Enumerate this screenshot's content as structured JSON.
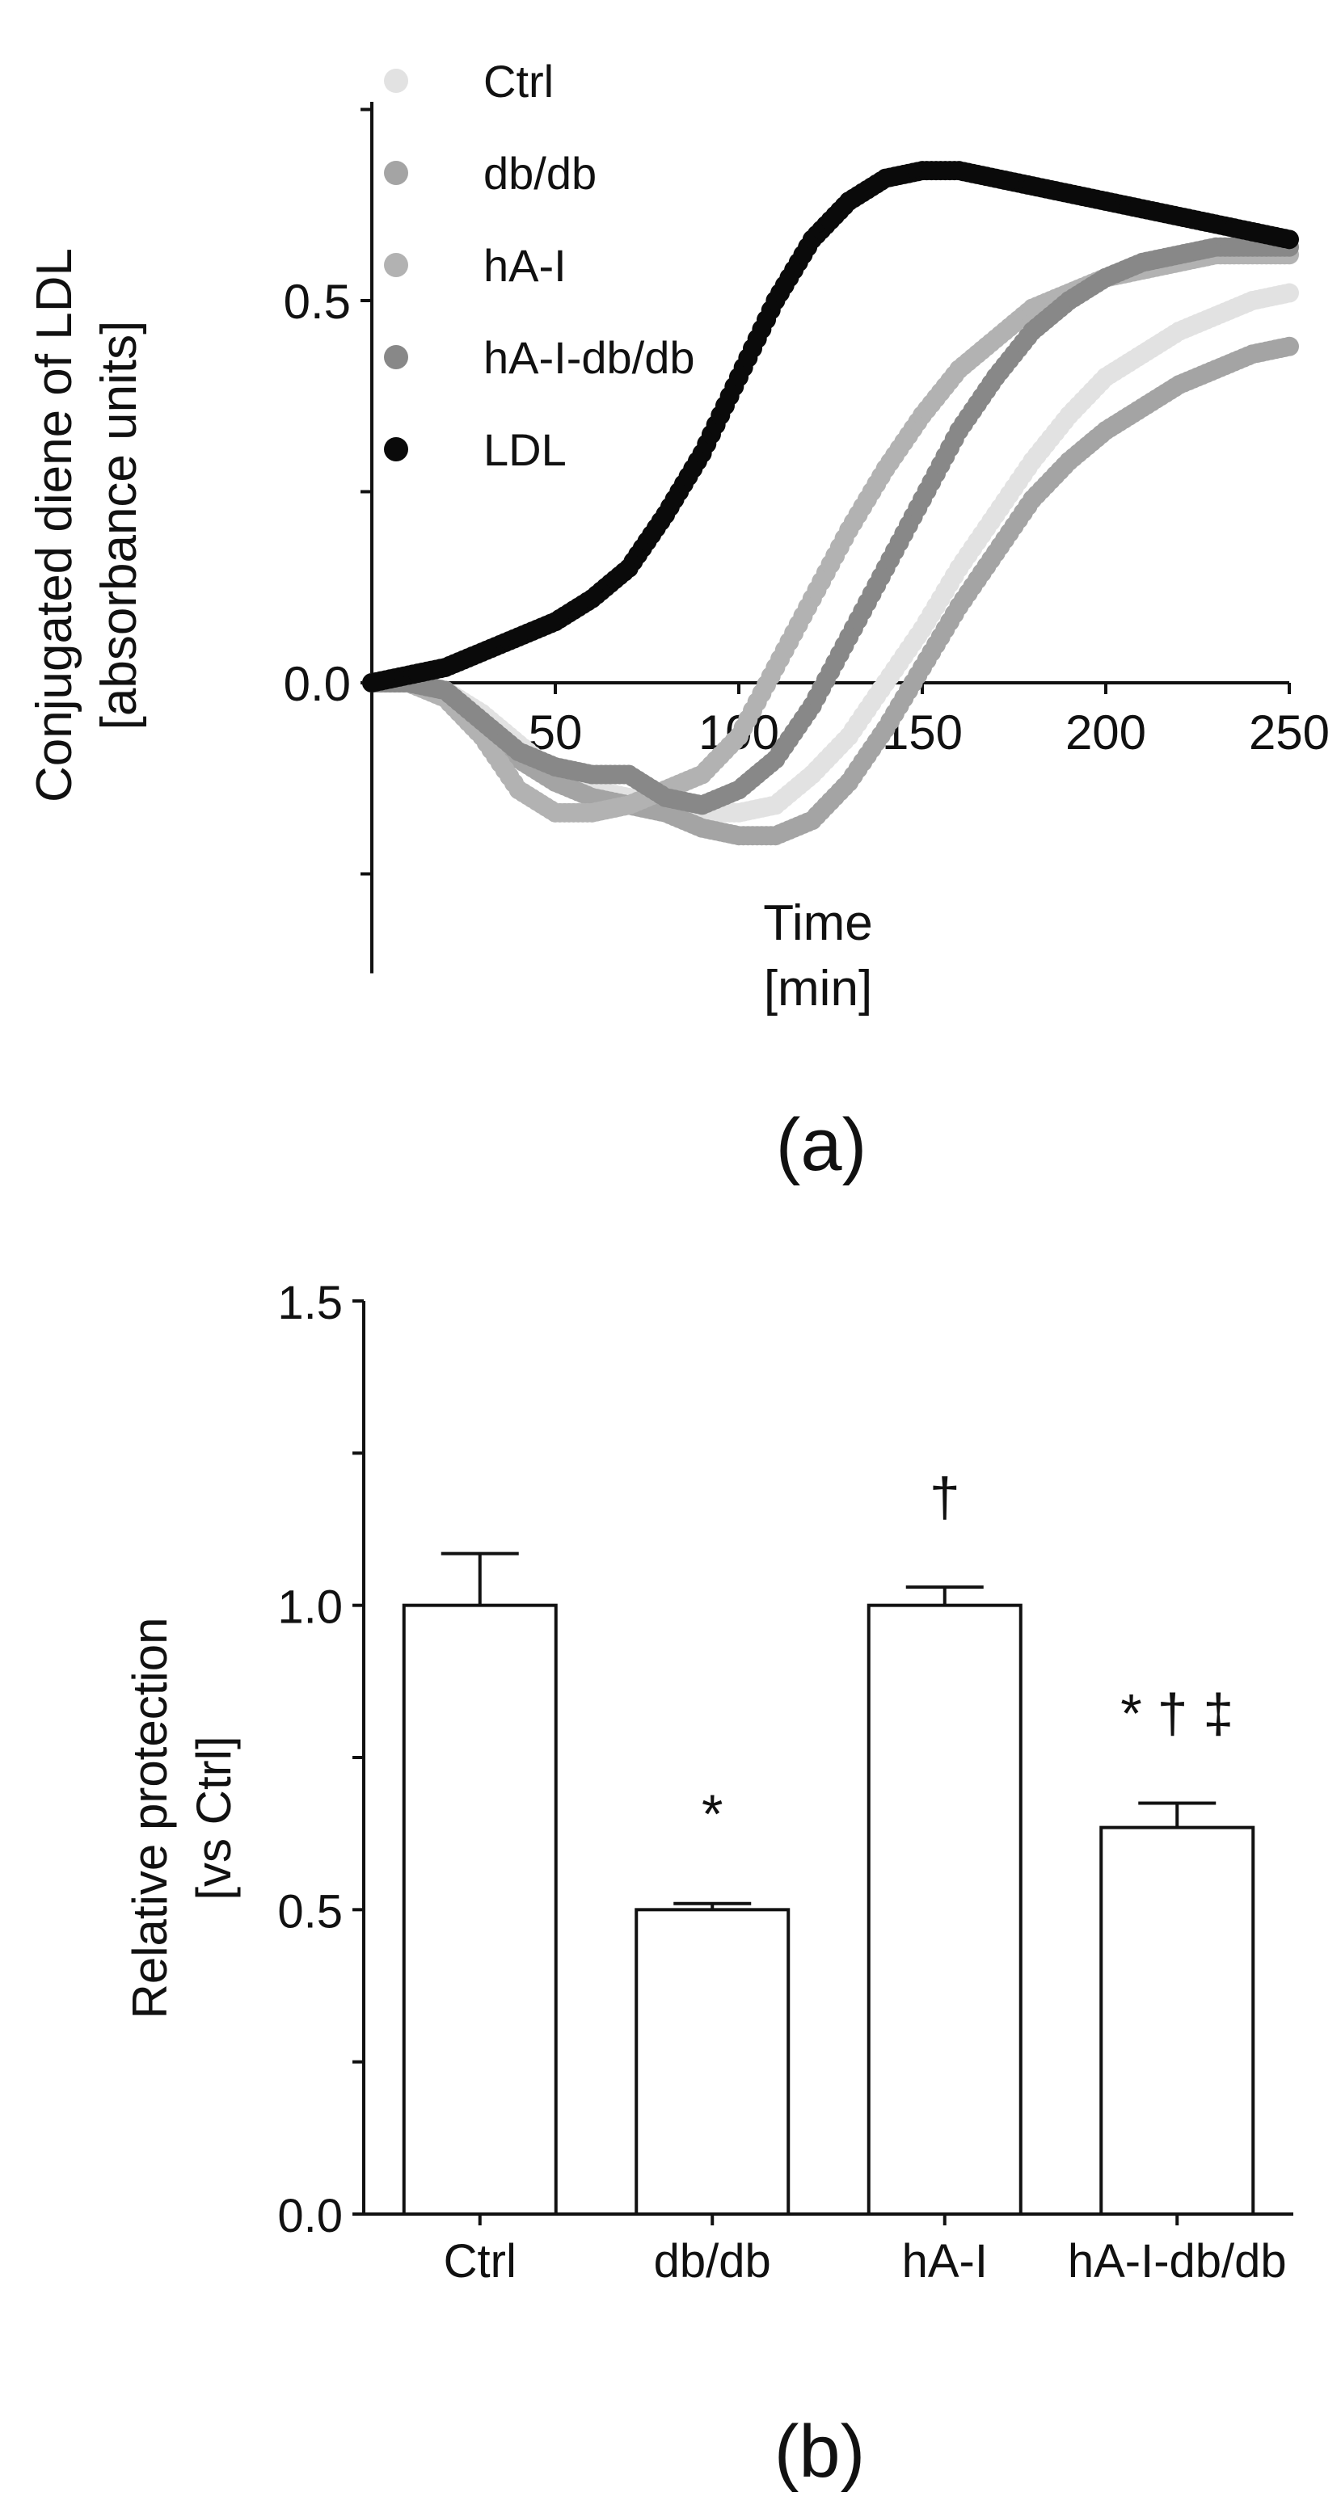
{
  "chart_data": [
    {
      "type": "scatter",
      "panel_label": "(a)",
      "xlabel": "Time",
      "xlabel_unit": "[min]",
      "ylabel": "Conjugated diene of LDL",
      "ylabel_unit": "[absorbance units]",
      "xlim": [
        0,
        250
      ],
      "ylim": [
        -0.38,
        0.76
      ],
      "x_ticks": [
        0,
        50,
        100,
        150,
        200,
        250
      ],
      "y_ticks": [
        0.0,
        0.5
      ],
      "x_tick_labels": [
        "50",
        "100",
        "150",
        "200",
        "250"
      ],
      "y_tick_labels": [
        "0.0",
        "0.5"
      ],
      "legend": [
        "Ctrl",
        "db/db",
        "hA-I",
        "hA-I-db/db",
        "LDL"
      ],
      "legend_position": "top-left",
      "series": [
        {
          "name": "Ctrl",
          "color": "#e2e2e2",
          "x": [
            0,
            10,
            20,
            30,
            40,
            50,
            60,
            70,
            80,
            90,
            100,
            110,
            120,
            130,
            140,
            150,
            160,
            170,
            180,
            190,
            200,
            210,
            220,
            230,
            240,
            250
          ],
          "y": [
            0.0,
            0.0,
            -0.01,
            -0.04,
            -0.08,
            -0.12,
            -0.14,
            -0.15,
            -0.16,
            -0.17,
            -0.17,
            -0.16,
            -0.12,
            -0.07,
            0.0,
            0.07,
            0.15,
            0.22,
            0.29,
            0.35,
            0.4,
            0.43,
            0.46,
            0.48,
            0.5,
            0.51
          ]
        },
        {
          "name": "db/db",
          "color": "#a4a4a4",
          "x": [
            0,
            10,
            20,
            30,
            40,
            50,
            60,
            70,
            80,
            90,
            100,
            110,
            120,
            130,
            140,
            150,
            160,
            170,
            180,
            190,
            200,
            210,
            220,
            230,
            240,
            250
          ],
          "y": [
            0.0,
            0.0,
            -0.01,
            -0.05,
            -0.1,
            -0.13,
            -0.15,
            -0.16,
            -0.17,
            -0.19,
            -0.2,
            -0.2,
            -0.18,
            -0.13,
            -0.06,
            0.02,
            0.1,
            0.17,
            0.24,
            0.29,
            0.33,
            0.36,
            0.39,
            0.41,
            0.43,
            0.44
          ]
        },
        {
          "name": "hA-I",
          "color": "#b2b2b2",
          "x": [
            0,
            10,
            20,
            30,
            40,
            50,
            60,
            70,
            80,
            90,
            100,
            110,
            120,
            130,
            140,
            150,
            160,
            170,
            180,
            190,
            200,
            210,
            220,
            230,
            240,
            250
          ],
          "y": [
            0.0,
            0.0,
            -0.02,
            -0.07,
            -0.14,
            -0.17,
            -0.17,
            -0.16,
            -0.14,
            -0.12,
            -0.07,
            0.02,
            0.11,
            0.2,
            0.28,
            0.35,
            0.41,
            0.45,
            0.49,
            0.51,
            0.53,
            0.54,
            0.55,
            0.56,
            0.56,
            0.56
          ]
        },
        {
          "name": "hA-I-db/db",
          "color": "#888888",
          "x": [
            0,
            10,
            20,
            30,
            40,
            50,
            60,
            70,
            80,
            90,
            100,
            110,
            120,
            130,
            140,
            150,
            160,
            170,
            180,
            190,
            200,
            210,
            220,
            230,
            240,
            250
          ],
          "y": [
            0.0,
            0.0,
            -0.01,
            -0.05,
            -0.09,
            -0.11,
            -0.12,
            -0.12,
            -0.15,
            -0.16,
            -0.14,
            -0.1,
            -0.03,
            0.06,
            0.15,
            0.24,
            0.33,
            0.4,
            0.46,
            0.5,
            0.53,
            0.55,
            0.56,
            0.57,
            0.57,
            0.57
          ]
        },
        {
          "name": "LDL",
          "color": "#0a0a0a",
          "x": [
            0,
            10,
            20,
            30,
            40,
            50,
            60,
            70,
            80,
            90,
            100,
            110,
            120,
            130,
            140,
            150,
            160,
            170,
            180,
            190,
            200,
            210,
            220,
            230,
            240,
            250
          ],
          "y": [
            0.0,
            0.01,
            0.02,
            0.04,
            0.06,
            0.08,
            0.11,
            0.15,
            0.22,
            0.3,
            0.4,
            0.5,
            0.58,
            0.63,
            0.66,
            0.67,
            0.67,
            0.66,
            0.65,
            0.64,
            0.63,
            0.62,
            0.61,
            0.6,
            0.59,
            0.58
          ]
        }
      ]
    },
    {
      "type": "bar",
      "panel_label": "(b)",
      "ylabel": "Relative protection",
      "ylabel_unit": "[vs Ctrl]",
      "xlabel": "",
      "categories": [
        "Ctrl",
        "db/db",
        "hA-I",
        "hA-I-db/db"
      ],
      "values": [
        1.0,
        0.5,
        1.0,
        0.635
      ],
      "errors": [
        0.085,
        0.01,
        0.03,
        0.04
      ],
      "annotations": [
        "",
        "*",
        "†",
        "* † ‡"
      ],
      "ylim": [
        0,
        1.5
      ],
      "y_ticks": [
        0.0,
        0.5,
        1.0,
        1.5
      ],
      "y_tick_labels": [
        "0.0",
        "0.5",
        "1.0",
        "1.5"
      ]
    }
  ]
}
